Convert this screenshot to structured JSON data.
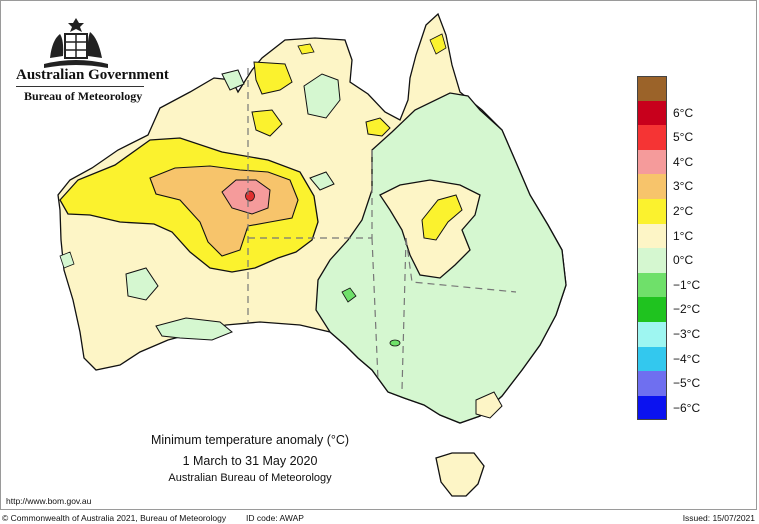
{
  "branding": {
    "government": "Australian Government",
    "agency": "Bureau of Meteorology",
    "crest_icon": "commonwealth-coat-of-arms-icon"
  },
  "map": {
    "type": "choropleth-anomaly-map",
    "region": "Australia",
    "colors": {
      "ocean": "#ffffff",
      "anomaly_0_to_1": "#fdf5c6",
      "anomaly_1_to_2": "#fbf22e",
      "anomaly_2_to_3": "#f7c46b",
      "anomaly_3_to_4": "#f59b9b",
      "anomaly_4_to_5": "#e0302f",
      "anomaly_minus1_to_0": "#d5f7d0",
      "anomaly_minus2_to_minus1": "#6fe06a",
      "contour_line": "#111111",
      "state_border": "#777777"
    }
  },
  "caption": {
    "title": "Minimum temperature anomaly (°C)",
    "period": "1 March to 31 May 2020",
    "agency": "Australian Bureau of Meteorology"
  },
  "legend": {
    "entries": [
      {
        "label": "",
        "color": "#9b6329"
      },
      {
        "label": "6°C",
        "color": "#c8001c"
      },
      {
        "label": "5°C",
        "color": "#f53434"
      },
      {
        "label": "4°C",
        "color": "#f59b9b"
      },
      {
        "label": "3°C",
        "color": "#f7c46b"
      },
      {
        "label": "2°C",
        "color": "#fbf22e"
      },
      {
        "label": "1°C",
        "color": "#fdf5c6"
      },
      {
        "label": "0°C",
        "color": "#d5f7d0"
      },
      {
        "label": "−1°C",
        "color": "#6fe06a"
      },
      {
        "label": "−2°C",
        "color": "#1fc31f"
      },
      {
        "label": "−3°C",
        "color": "#9ef6f1"
      },
      {
        "label": "−4°C",
        "color": "#33c8ee"
      },
      {
        "label": "−5°C",
        "color": "#6f6ff0"
      },
      {
        "label": "−6°C",
        "color": "#0b12f0"
      }
    ]
  },
  "footer": {
    "url": "http://www.bom.gov.au",
    "copyright": "© Commonwealth of Australia 2021, Bureau of Meteorology",
    "id_code": "ID code: AWAP",
    "issued": "Issued: 15/07/2021"
  }
}
